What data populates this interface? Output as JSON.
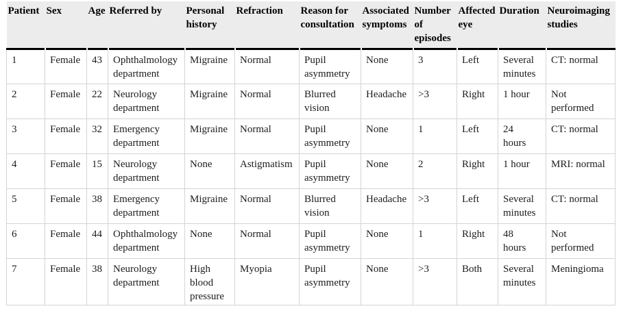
{
  "table": {
    "columns": [
      "Patient",
      "Sex",
      "Age",
      "Referred by",
      "Personal\nhistory",
      "Refraction",
      "Reason for\nconsultation",
      "Associated\nsymptoms",
      "Number\nof\nepisodes",
      "Affected\neye",
      "Duration",
      "Neuroimaging\nstudies"
    ],
    "rows": [
      [
        "1",
        "Female",
        "43",
        "Ophthalmology\ndepartment",
        "Migraine",
        "Normal",
        "Pupil\nasymmetry",
        "None",
        "3",
        "Left",
        "Several\nminutes",
        "CT: normal"
      ],
      [
        "2",
        "Female",
        "22",
        "Neurology\ndepartment",
        "Migraine",
        "Normal",
        "Blurred\nvision",
        "Headache",
        ">3",
        "Right",
        "1 hour",
        "Not\nperformed"
      ],
      [
        "3",
        "Female",
        "32",
        "Emergency\ndepartment",
        "Migraine",
        "Normal",
        "Pupil\nasymmetry",
        "None",
        "1",
        "Left",
        "24\nhours",
        "CT: normal"
      ],
      [
        "4",
        "Female",
        "15",
        "Neurology\ndepartment",
        "None",
        "Astigmatism",
        "Pupil\nasymmetry",
        "None",
        "2",
        "Right",
        "1 hour",
        "MRI: normal"
      ],
      [
        "5",
        "Female",
        "38",
        "Emergency\ndepartment",
        "Migraine",
        "Normal",
        "Blurred\nvision",
        "Headache",
        ">3",
        "Left",
        "Several\nminutes",
        "CT: normal"
      ],
      [
        "6",
        "Female",
        "44",
        "Ophthalmology\ndepartment",
        "None",
        "Normal",
        "Pupil\nasymmetry",
        "None",
        "1",
        "Right",
        "48\nhours",
        "Not\nperformed"
      ],
      [
        "7",
        "Female",
        "38",
        "Neurology\ndepartment",
        "High\nblood\npressure",
        "Myopia",
        "Pupil\nasymmetry",
        "None",
        ">3",
        "Both",
        "Several\nminutes",
        "Meningioma"
      ]
    ]
  },
  "colors": {
    "header_bg": "#ececec",
    "grid_line": "#d4d4d4",
    "header_rule": "#000000",
    "text": "#1c1c1c"
  }
}
